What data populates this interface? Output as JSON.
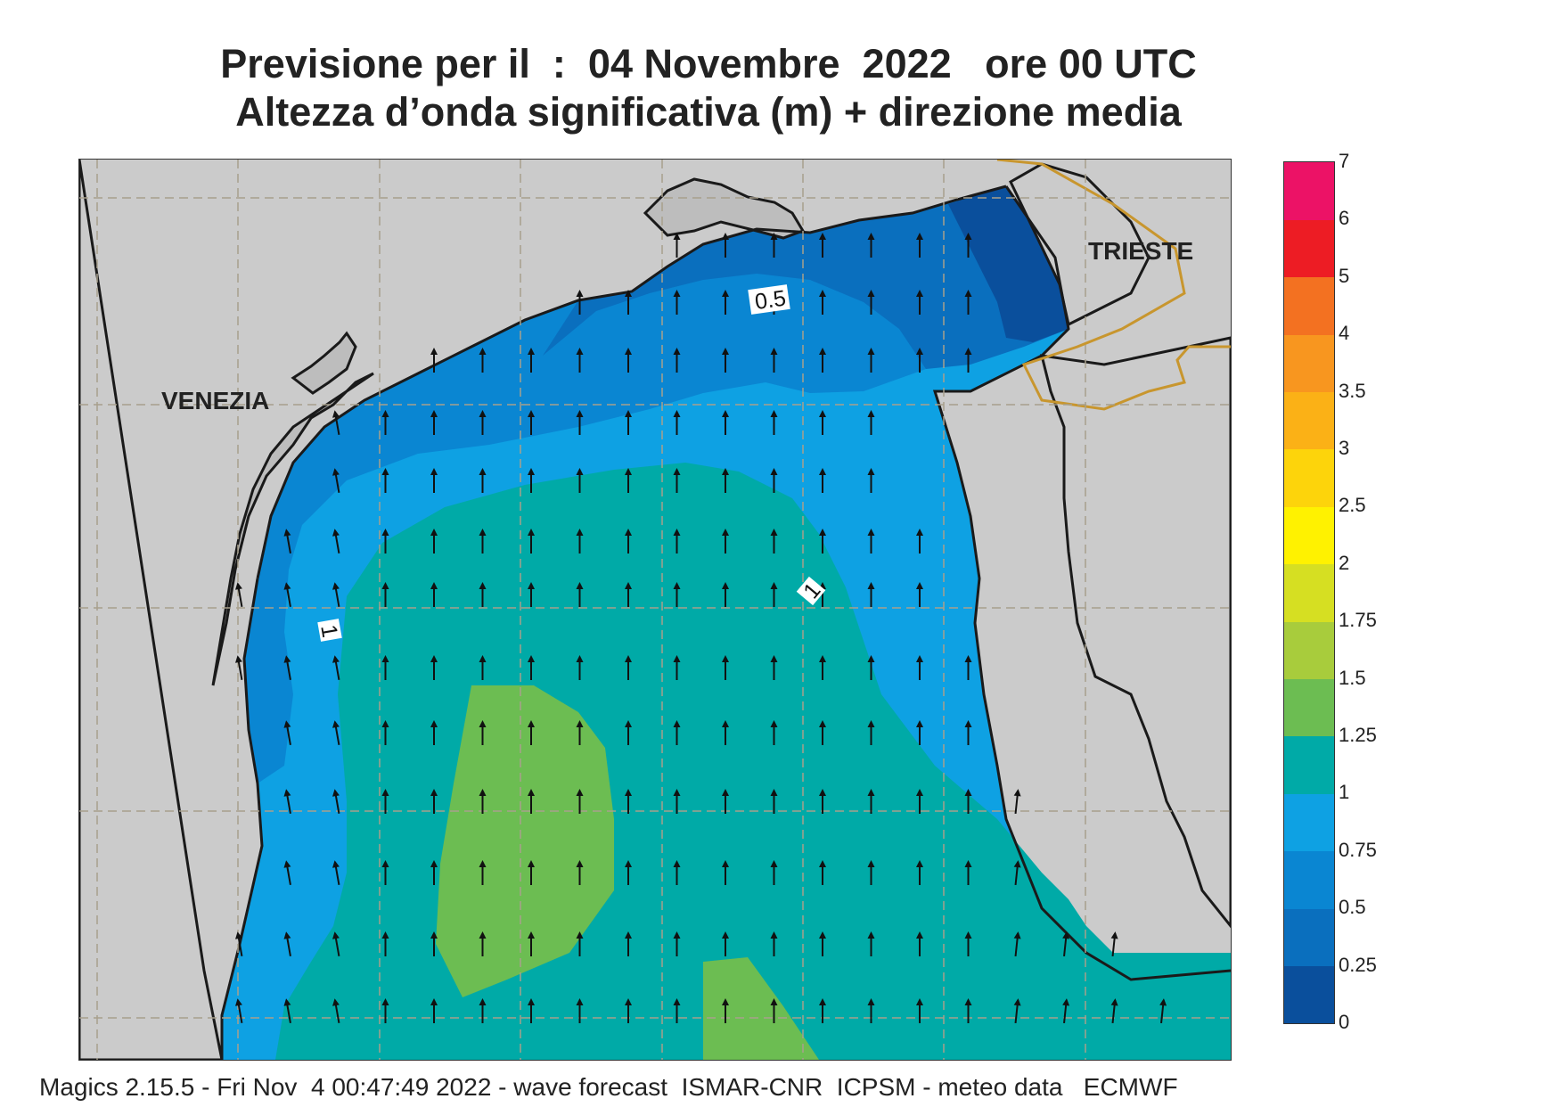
{
  "header": {
    "line1": "Previsione per il  :  04 Novembre  2022   ore 00 UTC",
    "line2": "Altezza d’onda significativa (m) + direzione media"
  },
  "map": {
    "cities": {
      "venezia": "VENEZIA",
      "trieste": "TRIESTE"
    },
    "contour_labels": {
      "c05": "0.5",
      "c1_west": "1",
      "c1_east": "1"
    },
    "colors": {
      "land": "#cbcbcb",
      "coast": "#1a1a1a",
      "grid": "#a8a08c",
      "border": "#c8962e",
      "wave_0_25": "#0a4f9c",
      "wave_0_25_0_5": "#0a6fbe",
      "wave_0_5_0_75": "#0a86d2",
      "wave_0_75_1": "#0ea1e3",
      "wave_1_1_25": "#00aaa7",
      "wave_1_25_1_5": "#6cbd52",
      "arrow": "#111111"
    },
    "mean_wave_direction": "north (arrows pointing up, slightly veering)"
  },
  "legend": {
    "title": "",
    "bands": [
      {
        "from": "0",
        "to": "0.25",
        "color": "#0a4f9c"
      },
      {
        "from": "0.25",
        "to": "0.5",
        "color": "#0a6fbe"
      },
      {
        "from": "0.5",
        "to": "0.75",
        "color": "#0a86d2"
      },
      {
        "from": "0.75",
        "to": "1",
        "color": "#0ea1e3"
      },
      {
        "from": "1",
        "to": "1.25",
        "color": "#00aaa7"
      },
      {
        "from": "1.25",
        "to": "1.5",
        "color": "#6cbd52"
      },
      {
        "from": "1.5",
        "to": "1.75",
        "color": "#a8cc3c"
      },
      {
        "from": "1.75",
        "to": "2",
        "color": "#d6df22"
      },
      {
        "from": "2",
        "to": "2.5",
        "color": "#fff200"
      },
      {
        "from": "2.5",
        "to": "3",
        "color": "#fdd40b"
      },
      {
        "from": "3",
        "to": "3.5",
        "color": "#fbb116"
      },
      {
        "from": "3.5",
        "to": "4",
        "color": "#f8961f"
      },
      {
        "from": "4",
        "to": "5",
        "color": "#f37121"
      },
      {
        "from": "5",
        "to": "6",
        "color": "#ed1c24"
      },
      {
        "from": "6",
        "to": "7",
        "color": "#ec1266"
      }
    ],
    "ticks": [
      "0",
      "0.25",
      "0.5",
      "0.75",
      "1",
      "1.25",
      "1.5",
      "1.75",
      "2",
      "2.5",
      "3",
      "3.5",
      "4",
      "5",
      "6",
      "7"
    ]
  },
  "footer": {
    "text": "Magics 2.15.5 - Fri Nov  4 00:47:49 2022 - wave forecast  ISMAR-CNR  ICPSM - meteo data   ECMWF"
  }
}
